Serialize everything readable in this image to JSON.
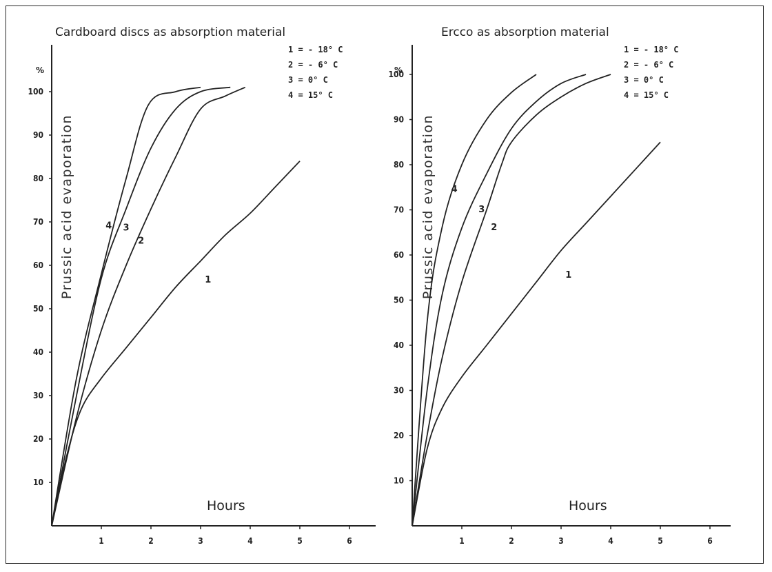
{
  "chart_data": [
    {
      "type": "line",
      "title": "Cardboard discs as absorption material",
      "ylabel": "Prussic acid evaporation",
      "yunit": "%",
      "xlabel": "Hours",
      "xlim": [
        0,
        6.5
      ],
      "ylim": [
        0,
        110
      ],
      "xticks": [
        "1",
        "2",
        "3",
        "4",
        "5",
        "6"
      ],
      "yticks": [
        "10",
        "20",
        "30",
        "40",
        "50",
        "60",
        "70",
        "80",
        "90",
        "100"
      ],
      "grid": false,
      "legend_position": "top-right",
      "legend": [
        {
          "id": "1",
          "text": "1 = - 18° C"
        },
        {
          "id": "2",
          "text": "2 = - 6° C"
        },
        {
          "id": "3",
          "text": "3 = 0° C"
        },
        {
          "id": "4",
          "text": "4 = 15° C"
        }
      ],
      "series": [
        {
          "name": "1",
          "x": [
            0,
            0.3,
            0.6,
            1.0,
            1.5,
            2.0,
            2.5,
            3.0,
            3.5,
            4.0,
            4.5,
            5.0
          ],
          "y": [
            0,
            16,
            27,
            34,
            41,
            48,
            55,
            61,
            67,
            72,
            78,
            84
          ]
        },
        {
          "name": "2",
          "x": [
            0,
            0.5,
            1.0,
            1.5,
            2.0,
            2.5,
            3.0,
            3.5,
            3.9
          ],
          "y": [
            0,
            25,
            45,
            60,
            73,
            85,
            96,
            99,
            101
          ]
        },
        {
          "name": "3",
          "x": [
            0,
            0.5,
            1.0,
            1.5,
            2.0,
            2.5,
            3.0,
            3.6
          ],
          "y": [
            0,
            30,
            57,
            73,
            87,
            96,
            100,
            101
          ]
        },
        {
          "name": "4",
          "x": [
            0,
            0.5,
            1.0,
            1.5,
            1.95,
            2.5,
            3.0
          ],
          "y": [
            0,
            34,
            58,
            80,
            97,
            100,
            101
          ]
        }
      ],
      "curve_labels": [
        {
          "series": "4",
          "x": 1.15,
          "y": 68.5
        },
        {
          "series": "3",
          "x": 1.5,
          "y": 68
        },
        {
          "series": "2",
          "x": 1.8,
          "y": 65
        },
        {
          "series": "1",
          "x": 3.15,
          "y": 56
        }
      ]
    },
    {
      "type": "line",
      "title": "Ercco as absorption material",
      "ylabel": "Prussic acid evaporation",
      "yunit": "%",
      "xlabel": "Hours",
      "xlim": [
        0,
        6.5
      ],
      "ylim": [
        0,
        110
      ],
      "xticks": [
        "1",
        "2",
        "3",
        "4",
        "5",
        "6"
      ],
      "yticks": [
        "10",
        "20",
        "30",
        "40",
        "50",
        "60",
        "70",
        "80",
        "90",
        "100"
      ],
      "grid": false,
      "legend_position": "top-right",
      "legend": [
        {
          "id": "1",
          "text": "1 = - 18° C"
        },
        {
          "id": "2",
          "text": "2 = - 6° C"
        },
        {
          "id": "3",
          "text": "3 = 0° C"
        },
        {
          "id": "4",
          "text": "4 = 15° C"
        }
      ],
      "series": [
        {
          "name": "1",
          "x": [
            0,
            0.3,
            0.6,
            1.0,
            1.5,
            2.0,
            2.5,
            3.0,
            3.5,
            4.0,
            4.5,
            5.0
          ],
          "y": [
            0,
            17,
            26,
            33,
            40,
            47,
            54,
            61,
            67,
            73,
            79,
            85
          ]
        },
        {
          "name": "2",
          "x": [
            0,
            0.3,
            0.6,
            1.0,
            1.5,
            1.8,
            2.0,
            2.5,
            3.0,
            3.5,
            4.0
          ],
          "y": [
            0,
            20,
            37,
            54,
            70,
            80,
            85,
            91,
            95,
            98,
            100
          ]
        },
        {
          "name": "3",
          "x": [
            0,
            0.3,
            0.6,
            1.0,
            1.5,
            2.0,
            2.5,
            3.0,
            3.5
          ],
          "y": [
            0,
            30,
            51,
            66,
            78,
            88,
            94,
            98,
            100
          ]
        },
        {
          "name": "4",
          "x": [
            0,
            0.3,
            0.6,
            1.0,
            1.5,
            2.0,
            2.5
          ],
          "y": [
            0,
            45,
            66,
            80,
            90,
            96,
            100
          ]
        }
      ],
      "curve_labels": [
        {
          "series": "4",
          "x": 0.85,
          "y": 74
        },
        {
          "series": "3",
          "x": 1.4,
          "y": 69.5
        },
        {
          "series": "2",
          "x": 1.65,
          "y": 65.5
        },
        {
          "series": "1",
          "x": 3.15,
          "y": 55
        }
      ]
    }
  ]
}
